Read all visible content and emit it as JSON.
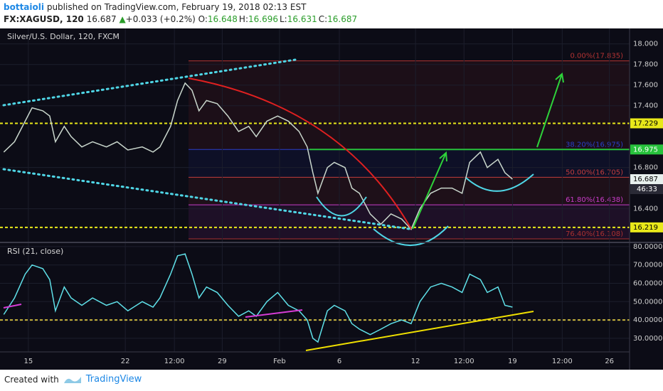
{
  "header": {
    "author": "bottaioli",
    "published": "published on TradingView.com, February 19, 2018 02:13 EST",
    "symbol": "FX:XAGUSD, 120",
    "price": 16.687,
    "arrow": "▲",
    "change": "+0.033 (+0.2%)",
    "ohlc": [
      {
        "label": "O:",
        "value": 16.648
      },
      {
        "label": "H:",
        "value": 16.696
      },
      {
        "label": "L:",
        "value": 16.631
      },
      {
        "label": "C:",
        "value": 16.687
      }
    ]
  },
  "chart_data": [
    {
      "type": "line",
      "title": "Silver/U.S. Dollar, 120, FXCM",
      "color": "#c9d6cc",
      "x": [
        0.6,
        2.3,
        4.0,
        5.1,
        6.8,
        7.9,
        8.8,
        10.2,
        11.3,
        13.0,
        14.7,
        16.9,
        18.6,
        20.3,
        22.6,
        24.3,
        25.4,
        27.1,
        28.2,
        29.4,
        30.5,
        31.6,
        32.8,
        34.5,
        36.2,
        37.9,
        39.5,
        40.7,
        42.4,
        44.1,
        45.8,
        47.5,
        48.8,
        49.7,
        50.5,
        52.0,
        53.1,
        54.8,
        55.9,
        57.1,
        58.8,
        60.5,
        62.1,
        63.8,
        65.3,
        66.7,
        68.4,
        70.1,
        71.8,
        73.4,
        74.6,
        76.3,
        77.4,
        79.1,
        80.2,
        81.4
      ],
      "values": [
        16.95,
        17.05,
        17.25,
        17.38,
        17.35,
        17.3,
        17.05,
        17.2,
        17.1,
        17.0,
        17.05,
        17.0,
        17.05,
        16.97,
        17.0,
        16.95,
        17.0,
        17.2,
        17.45,
        17.62,
        17.55,
        17.35,
        17.45,
        17.42,
        17.3,
        17.15,
        17.2,
        17.1,
        17.25,
        17.3,
        17.25,
        17.15,
        17.0,
        16.75,
        16.55,
        16.8,
        16.85,
        16.8,
        16.6,
        16.55,
        16.35,
        16.25,
        16.35,
        16.3,
        16.2,
        16.4,
        16.55,
        16.6,
        16.6,
        16.55,
        16.85,
        16.95,
        16.8,
        16.88,
        16.75,
        16.687
      ],
      "xlim": [
        0,
        100
      ],
      "xticks": [
        {
          "value": 4.5,
          "label": "15"
        },
        {
          "value": 19.9,
          "label": "22"
        },
        {
          "value": 27.7,
          "label": "12:00"
        },
        {
          "value": 35.3,
          "label": "29"
        },
        {
          "value": 44.4,
          "label": "Feb"
        },
        {
          "value": 53.9,
          "label": "6"
        },
        {
          "value": 66.0,
          "label": "12"
        },
        {
          "value": 73.7,
          "label": "12:00"
        },
        {
          "value": 81.4,
          "label": "19"
        },
        {
          "value": 89.3,
          "label": "12:00"
        },
        {
          "value": 96.8,
          "label": "26"
        }
      ],
      "ylim": [
        16.08,
        18.15
      ],
      "yticks": [
        {
          "value": 18,
          "label": "18.000"
        },
        {
          "value": 17.8,
          "label": "17.800"
        },
        {
          "value": 17.6,
          "label": "17.600"
        },
        {
          "value": 17.4,
          "label": "17.400"
        },
        {
          "value": 16.8,
          "label": "16.800"
        },
        {
          "value": 16.4,
          "label": "16.400"
        }
      ],
      "grid": true,
      "annotations": [
        {
          "label": "0.00%(17.835)",
          "value": 17.835,
          "color": "#b03232"
        },
        {
          "label": "38.20%(16.975)",
          "value": 16.975,
          "color": "#2a3fc8"
        },
        {
          "label": "50.00%(16.705)",
          "value": 16.705,
          "color": "#c23c3c"
        },
        {
          "label": "61.80%(16.438)",
          "value": 16.438,
          "color": "#c83cc8"
        },
        {
          "label": "76.40%(16.108)",
          "value": 16.108,
          "color": "#a83030"
        }
      ],
      "levels": [
        {
          "value": 17.229,
          "color": "#e8e81a",
          "dashed": true
        },
        {
          "value": 16.975,
          "color": "#27c23c",
          "dashed": false
        },
        {
          "value": 16.219,
          "color": "#e8e81a",
          "dashed": true
        }
      ],
      "last_price": 16.687,
      "countdown": "46:33"
    },
    {
      "type": "line",
      "title": "RSI (21, close)",
      "color": "#5fe0e8",
      "x": [
        0.6,
        2.3,
        4.0,
        5.1,
        6.8,
        7.9,
        8.8,
        10.2,
        11.3,
        13.0,
        14.7,
        16.9,
        18.6,
        20.3,
        22.6,
        24.3,
        25.4,
        27.1,
        28.2,
        29.4,
        30.5,
        31.6,
        32.8,
        34.5,
        36.2,
        37.9,
        39.5,
        40.7,
        42.4,
        44.1,
        45.8,
        47.5,
        48.8,
        49.7,
        50.5,
        52.0,
        53.1,
        54.8,
        55.9,
        57.1,
        58.8,
        60.5,
        62.1,
        63.8,
        65.3,
        66.7,
        68.4,
        70.1,
        71.8,
        73.4,
        74.6,
        76.3,
        77.4,
        79.1,
        80.2,
        81.4
      ],
      "values": [
        43,
        52,
        65,
        70,
        68,
        62,
        45,
        58,
        52,
        48,
        52,
        48,
        50,
        45,
        50,
        47,
        52,
        65,
        75,
        76,
        65,
        52,
        58,
        55,
        48,
        42,
        45,
        42,
        50,
        55,
        48,
        45,
        40,
        30,
        28,
        45,
        48,
        45,
        38,
        35,
        32,
        35,
        38,
        40,
        38,
        50,
        58,
        60,
        58,
        55,
        65,
        62,
        55,
        58,
        48,
        47
      ],
      "xlim": [
        0,
        100
      ],
      "ylim": [
        22.6,
        81.9
      ],
      "yticks": [
        {
          "value": 80,
          "label": "80.0000"
        },
        {
          "value": 70,
          "label": "70.0000"
        },
        {
          "value": 60,
          "label": "60.0000"
        },
        {
          "value": 50,
          "label": "50.0000"
        },
        {
          "value": 40,
          "label": "40.0000"
        },
        {
          "value": 30,
          "label": "30.0000"
        }
      ],
      "grid": true,
      "levels": [
        {
          "value": 40,
          "color": "#c8b43c",
          "dashed": true
        }
      ]
    }
  ],
  "footer": {
    "created": "Created with",
    "brand": "TradingView"
  }
}
